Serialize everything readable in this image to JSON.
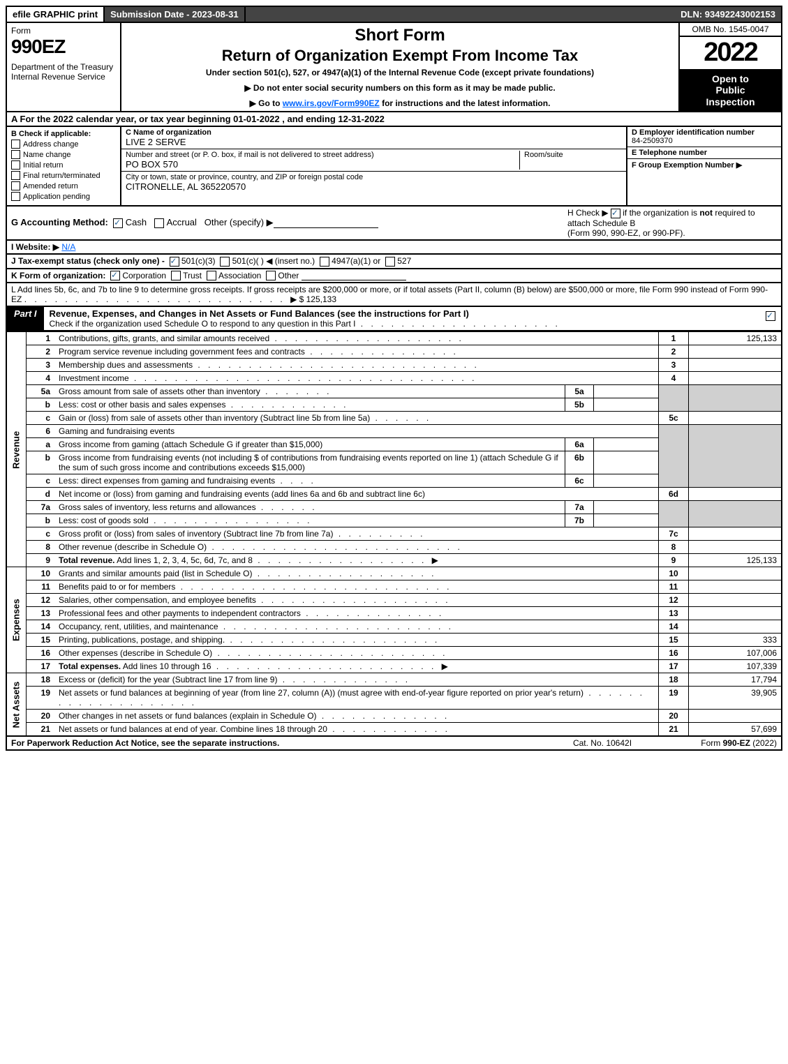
{
  "topbar": {
    "efile": "efile GRAPHIC print",
    "submission": "Submission Date - 2023-08-31",
    "dln": "DLN: 93492243002153"
  },
  "header": {
    "form_label": "Form",
    "form_number": "990EZ",
    "department": "Department of the Treasury Internal Revenue Service",
    "title1": "Short Form",
    "title2": "Return of Organization Exempt From Income Tax",
    "subtitle": "Under section 501(c), 527, or 4947(a)(1) of the Internal Revenue Code (except private foundations)",
    "note1": "▶ Do not enter social security numbers on this form as it may be made public.",
    "note2_prefix": "▶ Go to ",
    "note2_link": "www.irs.gov/Form990EZ",
    "note2_suffix": " for instructions and the latest information.",
    "omb": "OMB No. 1545-0047",
    "year": "2022",
    "open1": "Open to",
    "open2": "Public",
    "open3": "Inspection"
  },
  "row_a_prefix": "A",
  "row_a": "  For the 2022 calendar year, or tax year beginning 01-01-2022  , and ending 12-31-2022",
  "section_b": {
    "label": "B  Check if applicable:",
    "items": [
      "Address change",
      "Name change",
      "Initial return",
      "Final return/terminated",
      "Amended return",
      "Application pending"
    ]
  },
  "section_c": {
    "label": "C Name of organization",
    "value": "LIVE 2 SERVE",
    "street_label": "Number and street (or P. O. box, if mail is not delivered to street address)",
    "street_value": "PO BOX 570",
    "room_label": "Room/suite",
    "city_label": "City or town, state or province, country, and ZIP or foreign postal code",
    "city_value": "CITRONELLE, AL  365220570"
  },
  "section_d": {
    "label": "D Employer identification number",
    "value": "84-2509370"
  },
  "section_e": {
    "label": "E Telephone number"
  },
  "section_f": {
    "label": "F Group Exemption Number    ▶"
  },
  "section_g": {
    "label": "G Accounting Method:",
    "cash": "Cash",
    "accrual": "Accrual",
    "other": "Other (specify) ▶"
  },
  "section_h": {
    "label_prefix": "H   Check ▶ ",
    "label_mid": " if the organization is ",
    "not": "not",
    "line2": " required to attach Schedule B",
    "line3": "(Form 990, 990-EZ, or 990-PF)."
  },
  "section_i": {
    "label": "I Website: ▶",
    "value": "N/A"
  },
  "section_j": {
    "label": "J Tax-exempt status (check only one) -",
    "opt1": "501(c)(3)",
    "opt2": "501(c)(  ) ◀ (insert no.)",
    "opt3": "4947(a)(1) or",
    "opt4": "527"
  },
  "section_k": {
    "label": "K Form of organization:",
    "opt1": "Corporation",
    "opt2": "Trust",
    "opt3": "Association",
    "opt4": "Other"
  },
  "section_l": {
    "text": "L Add lines 5b, 6c, and 7b to line 9 to determine gross receipts. If gross receipts are $200,000 or more, or if total assets (Part II, column (B) below) are $500,000 or more, file Form 990 instead of Form 990-EZ",
    "value": "▶ $ 125,133"
  },
  "part1": {
    "label": "Part I",
    "title": "Revenue, Expenses, and Changes in Net Assets or Fund Balances (see the instructions for Part I)",
    "sub": "Check if the organization used Schedule O to respond to any question in this Part I"
  },
  "revenue_label": "Revenue",
  "expenses_label": "Expenses",
  "netassets_label": "Net Assets",
  "lines": {
    "l1": "Contributions, gifts, grants, and similar amounts received",
    "l2": "Program service revenue including government fees and contracts",
    "l3": "Membership dues and assessments",
    "l4": "Investment income",
    "l5a": "Gross amount from sale of assets other than inventory",
    "l5b": "Less: cost or other basis and sales expenses",
    "l5c": "Gain or (loss) from sale of assets other than inventory (Subtract line 5b from line 5a)",
    "l6": "Gaming and fundraising events",
    "l6a": "Gross income from gaming (attach Schedule G if greater than $15,000)",
    "l6b": "Gross income from fundraising events (not including $                    of contributions from fundraising events reported on line 1) (attach Schedule G if the sum of such gross income and contributions exceeds $15,000)",
    "l6c": "Less: direct expenses from gaming and fundraising events",
    "l6d": "Net income or (loss) from gaming and fundraising events (add lines 6a and 6b and subtract line 6c)",
    "l7a": "Gross sales of inventory, less returns and allowances",
    "l7b": "Less: cost of goods sold",
    "l7c": "Gross profit or (loss) from sales of inventory (Subtract line 7b from line 7a)",
    "l8": "Other revenue (describe in Schedule O)",
    "l9_label": "Total revenue.",
    "l9": " Add lines 1, 2, 3, 4, 5c, 6d, 7c, and 8",
    "l10": "Grants and similar amounts paid (list in Schedule O)",
    "l11": "Benefits paid to or for members",
    "l12": "Salaries, other compensation, and employee benefits",
    "l13": "Professional fees and other payments to independent contractors",
    "l14": "Occupancy, rent, utilities, and maintenance",
    "l15": "Printing, publications, postage, and shipping.",
    "l16": "Other expenses (describe in Schedule O)",
    "l17_label": "Total expenses.",
    "l17": " Add lines 10 through 16",
    "l18": "Excess or (deficit) for the year (Subtract line 17 from line 9)",
    "l19": "Net assets or fund balances at beginning of year (from line 27, column (A)) (must agree with end-of-year figure reported on prior year's return)",
    "l20": "Other changes in net assets or fund balances (explain in Schedule O)",
    "l21": "Net assets or fund balances at end of year. Combine lines 18 through 20"
  },
  "values": {
    "l1": "125,133",
    "l9": "125,133",
    "l15": "333",
    "l16": "107,006",
    "l17": "107,339",
    "l18": "17,794",
    "l19": "39,905",
    "l21": "57,699"
  },
  "footer": {
    "left": "For Paperwork Reduction Act Notice, see the separate instructions.",
    "center": "Cat. No. 10642I",
    "right_prefix": "Form ",
    "right_form": "990-EZ",
    "right_suffix": " (2022)"
  },
  "colors": {
    "link": "#0065ff",
    "shaded": "#d0d0d0",
    "check": "#2a6496",
    "topbar_darkbg": "#444444"
  }
}
